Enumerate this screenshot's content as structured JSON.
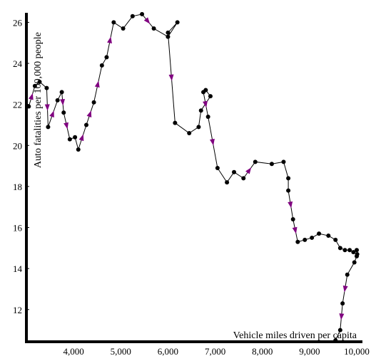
{
  "chart_data": {
    "type": "line",
    "xlabel": "Vehicle miles driven per capita",
    "ylabel": "Auto fatalities per 100,000 people",
    "xlim": [
      3000,
      10000
    ],
    "ylim": [
      10.5,
      26.5
    ],
    "xticks": [
      4000,
      5000,
      6000,
      7000,
      8000,
      9000,
      10000
    ],
    "xtick_labels": [
      "4,000",
      "5,000",
      "6,000",
      "7,000",
      "8,000",
      "9,000",
      "10,000"
    ],
    "yticks": [
      12,
      14,
      16,
      18,
      20,
      22,
      24,
      26
    ],
    "ytick_labels": [
      "12",
      "14",
      "16",
      "18",
      "20",
      "22",
      "24",
      "26"
    ],
    "grid": false,
    "legend": "none",
    "colors": {
      "line": "#000000",
      "point": "#000000",
      "arrow": "#800080"
    },
    "series": [
      {
        "x": [
          3050,
          3180,
          3280,
          3430,
          3460,
          3660,
          3750,
          3790,
          3920,
          4030,
          4100,
          4270,
          4430,
          4600,
          4700,
          4850,
          5050,
          5250,
          5450,
          5700,
          6000,
          6200,
          6000,
          6150,
          6450,
          6650,
          6700,
          6900,
          6800,
          6750,
          6850,
          7050,
          7250,
          7400,
          7600,
          7850,
          8200,
          8450,
          8550,
          8550,
          8650,
          8750,
          8900,
          9050,
          9200,
          9400,
          9550,
          9650,
          9750,
          9850,
          9930,
          10000,
          10010,
          10000,
          9950,
          9800,
          9700,
          9650,
          9550
        ],
        "y": [
          21.9,
          22.9,
          23.1,
          22.8,
          20.9,
          22.2,
          22.6,
          21.6,
          20.3,
          20.4,
          19.8,
          21.0,
          22.1,
          23.9,
          24.3,
          26.0,
          25.7,
          26.3,
          26.4,
          25.7,
          25.3,
          26.0,
          25.5,
          21.1,
          20.6,
          20.9,
          21.7,
          22.4,
          22.7,
          22.6,
          21.4,
          18.9,
          18.2,
          18.7,
          18.4,
          19.2,
          19.1,
          19.2,
          18.4,
          17.8,
          16.4,
          15.3,
          15.4,
          15.5,
          15.7,
          15.6,
          15.4,
          15.0,
          14.9,
          14.9,
          14.8,
          14.9,
          14.7,
          14.6,
          14.3,
          13.7,
          12.3,
          11.0,
          10.5
        ]
      }
    ]
  }
}
